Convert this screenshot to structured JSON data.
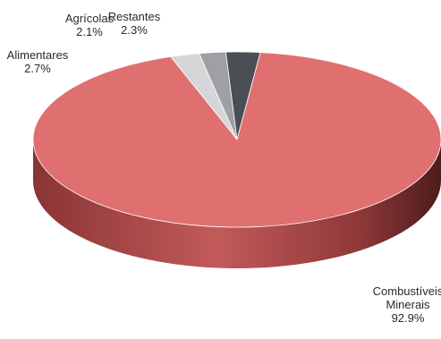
{
  "chart_data": {
    "type": "pie",
    "style": "3d",
    "slices": [
      {
        "label_lines": [
          "Restantes",
          "2.3%"
        ],
        "value": 2.3,
        "color": "#d6d6d8"
      },
      {
        "label_lines": [
          "Agrícolas",
          "2.1%"
        ],
        "value": 2.1,
        "color": "#9ea0a4"
      },
      {
        "label_lines": [
          "Alimentares",
          "2.7%"
        ],
        "value": 2.7,
        "color": "#4a4f56"
      },
      {
        "label_lines": [
          "Combustíveis",
          "Minerais",
          "92.9%"
        ],
        "value": 92.9,
        "color": "#e07070"
      }
    ]
  }
}
